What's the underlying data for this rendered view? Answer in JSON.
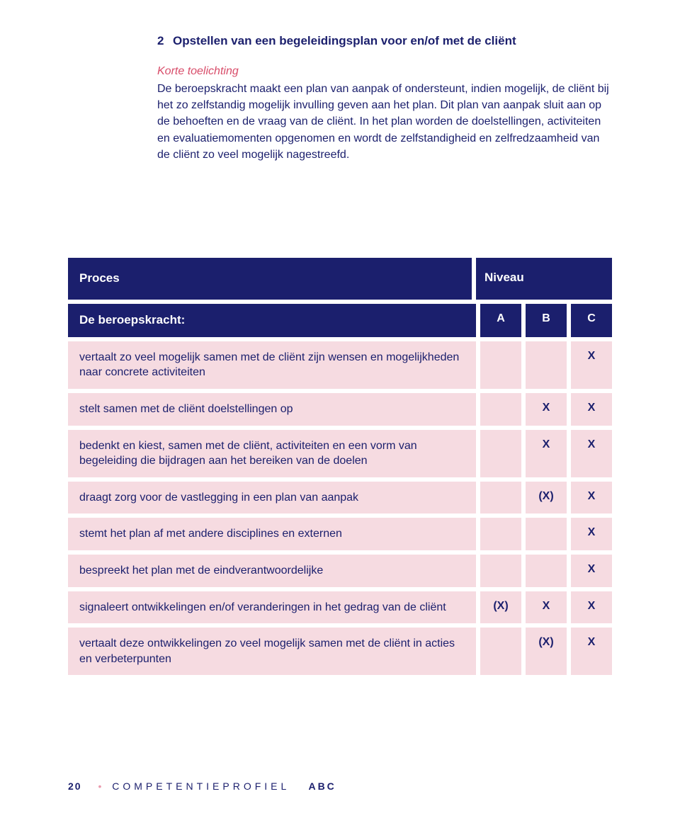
{
  "heading": {
    "num": "2",
    "text": "Opstellen van een begeleidingsplan voor en/of met de cliënt"
  },
  "sub": "Korte toelichting",
  "para": "De beroepskracht maakt een plan van aanpak of ondersteunt, indien mogelijk, de cliënt bij het zo zelfstandig mogelijk invulling geven aan het plan. Dit plan van aanpak sluit aan op de behoeften en de vraag van de cliënt. In het plan worden de doelstellingen, activiteiten en evaluatiemomenten opgenomen en wordt de zelfstandigheid en zelfredzaamheid van de cliënt zo veel mogelijk nagestreefd.",
  "header1": {
    "left": "Proces",
    "right": "Niveau"
  },
  "header2": {
    "left": "De beroepskracht:",
    "a": "A",
    "b": "B",
    "c": "C"
  },
  "rows": [
    {
      "desc": "vertaalt zo veel mogelijk samen met de cliënt zijn wensen en mogelijkheden naar concrete activiteiten",
      "a": "",
      "b": "",
      "c": "X"
    },
    {
      "desc": "stelt samen met de cliënt doelstellingen op",
      "a": "",
      "b": "X",
      "c": "X"
    },
    {
      "desc": "bedenkt en kiest, samen met de cliënt, activiteiten en een vorm van begeleiding die bijdragen aan het bereiken van de doelen",
      "a": "",
      "b": "X",
      "c": "X"
    },
    {
      "desc": "draagt zorg voor de vastlegging in een plan van aanpak",
      "a": "",
      "b": "(X)",
      "c": "X"
    },
    {
      "desc": "stemt het plan af met andere disciplines en externen",
      "a": "",
      "b": "",
      "c": "X"
    },
    {
      "desc": "bespreekt het plan met de eindverantwoordelijke",
      "a": "",
      "b": "",
      "c": "X"
    },
    {
      "desc": "signaleert ontwikkelingen en/of veranderingen in het gedrag van de cliënt",
      "a": "(X)",
      "b": "X",
      "c": "X"
    },
    {
      "desc": "vertaalt deze ontwikkelingen zo veel mogelijk samen met de cliënt in acties en verbeterpunten",
      "a": "",
      "b": "(X)",
      "c": "X"
    }
  ],
  "footer": {
    "page": "20",
    "word": "COMPETENTIEPROFIEL",
    "abc": "ABC"
  }
}
